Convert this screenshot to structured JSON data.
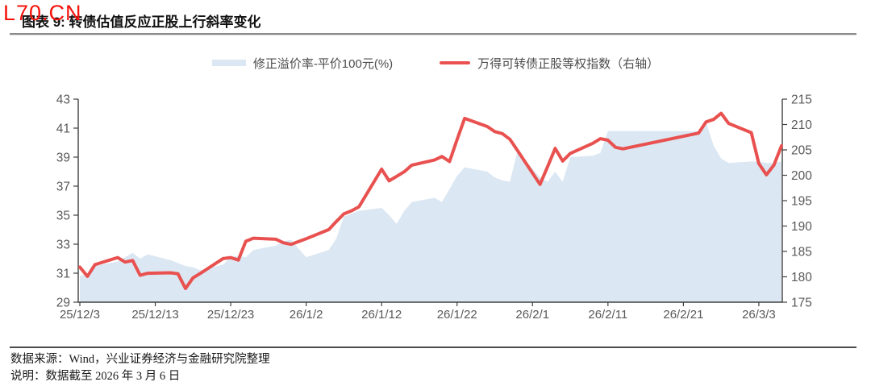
{
  "watermark": "L70.CN",
  "header": {
    "title": "图表 9: 转债估值反应正股上行斜率变化"
  },
  "legend": [
    {
      "label": "修正溢价率-平价100元(%)",
      "color": "#dbe7f3",
      "type": "area"
    },
    {
      "label": "万得可转债正股等权指数（右轴）",
      "color": "#e8514f",
      "type": "line"
    }
  ],
  "footer": {
    "source": "数据来源：Wind，兴业证券经济与金融研究院整理",
    "note": "说明：数据截至 2026 年 3 月 6 日"
  },
  "colors": {
    "area_fill": "#dbe7f3",
    "line_red": "#e8514f",
    "axis_line": "#404040",
    "axis_text": "#595959",
    "watermark_red": "#f5120b"
  },
  "chart_data": {
    "type": "line",
    "title": "转债估值反应正股上行斜率变化",
    "grid": false,
    "legend_position": "top-center",
    "x_axis": {
      "tick_labels": [
        "25/12/3",
        "25/12/13",
        "25/12/23",
        "26/1/2",
        "26/1/12",
        "26/1/22",
        "26/2/1",
        "26/2/11",
        "26/2/21",
        "26/3/3"
      ],
      "tick_days": [
        0,
        10,
        20,
        30,
        40,
        50,
        60,
        70,
        80,
        90
      ],
      "total_days": 93
    },
    "y_left": {
      "label": "修正溢价率-平价100元(%)",
      "ticks": [
        29,
        31,
        33,
        35,
        37,
        39,
        41,
        43
      ],
      "ylim": [
        29,
        43
      ]
    },
    "y_right": {
      "label": "万得可转债正股等权指数（右轴）",
      "ticks": [
        175,
        180,
        185,
        190,
        195,
        200,
        205,
        210,
        215
      ],
      "ylim": [
        175,
        215
      ]
    },
    "dates": [
      "25/12/3",
      "25/12/4",
      "25/12/5",
      "25/12/8",
      "25/12/9",
      "25/12/10",
      "25/12/11",
      "25/12/12",
      "25/12/15",
      "25/12/16",
      "25/12/17",
      "25/12/18",
      "25/12/19",
      "25/12/22",
      "25/12/23",
      "25/12/24",
      "25/12/25",
      "25/12/26",
      "25/12/29",
      "25/12/30",
      "25/12/31",
      "26/1/2",
      "26/1/5",
      "26/1/6",
      "26/1/7",
      "26/1/8",
      "26/1/9",
      "26/1/12",
      "26/1/13",
      "26/1/14",
      "26/1/15",
      "26/1/16",
      "26/1/19",
      "26/1/20",
      "26/1/21",
      "26/1/22",
      "26/1/23",
      "26/1/26",
      "26/1/27",
      "26/1/28",
      "26/1/29",
      "26/1/30",
      "26/2/2",
      "26/2/3",
      "26/2/4",
      "26/2/5",
      "26/2/6",
      "26/2/9",
      "26/2/10",
      "26/2/11",
      "26/2/12",
      "26/2/13",
      "26/2/23",
      "26/2/24",
      "26/2/25",
      "26/2/26",
      "26/2/27",
      "26/3/2",
      "26/3/3",
      "26/3/4",
      "26/3/5",
      "26/3/6"
    ],
    "days": [
      0,
      1,
      2,
      5,
      6,
      7,
      8,
      9,
      12,
      13,
      14,
      15,
      16,
      19,
      20,
      21,
      22,
      23,
      26,
      27,
      28,
      30,
      33,
      34,
      35,
      36,
      37,
      40,
      41,
      42,
      43,
      44,
      47,
      48,
      49,
      50,
      51,
      54,
      55,
      56,
      57,
      58,
      61,
      62,
      63,
      64,
      65,
      68,
      69,
      70,
      71,
      72,
      82,
      83,
      84,
      85,
      86,
      89,
      90,
      91,
      92,
      93
    ],
    "series": [
      {
        "name": "修正溢价率-平价100元(%)",
        "axis": "left",
        "style": "area",
        "color": "#dbe7f3",
        "values": [
          30.8,
          31.0,
          31.5,
          31.8,
          32.1,
          32.4,
          32.0,
          32.3,
          31.9,
          31.7,
          31.5,
          31.4,
          31.2,
          31.6,
          32.1,
          32.2,
          32.1,
          32.6,
          32.9,
          33.2,
          33.3,
          32.1,
          32.6,
          33.4,
          34.9,
          35.1,
          35.3,
          35.5,
          35.0,
          34.4,
          35.3,
          35.9,
          36.2,
          35.9,
          36.8,
          37.7,
          38.3,
          38.0,
          37.6,
          37.4,
          37.3,
          39.4,
          37.6,
          37.3,
          38.0,
          37.3,
          39.0,
          39.1,
          39.3,
          40.8,
          40.8,
          40.8,
          40.8,
          41.4,
          39.8,
          38.9,
          38.6,
          38.7,
          38.7,
          38.6,
          38.6,
          38.7
        ]
      },
      {
        "name": "万得可转债正股等权指数（右轴）",
        "axis": "right",
        "style": "line",
        "color": "#e8514f",
        "values": [
          181.9,
          180.1,
          182.4,
          183.8,
          182.9,
          183.2,
          180.3,
          180.7,
          180.8,
          180.6,
          177.7,
          179.8,
          180.7,
          183.6,
          183.8,
          183.3,
          187.0,
          187.6,
          187.4,
          186.7,
          186.4,
          187.5,
          189.3,
          190.9,
          192.4,
          193.0,
          193.8,
          201.2,
          198.9,
          199.8,
          200.7,
          202.0,
          203.0,
          203.7,
          202.7,
          207.0,
          211.2,
          209.6,
          208.6,
          208.2,
          207.1,
          204.9,
          198.2,
          201.7,
          205.3,
          202.8,
          204.3,
          206.3,
          207.2,
          206.9,
          205.5,
          205.2,
          208.3,
          210.5,
          211.0,
          212.2,
          210.2,
          208.4,
          202.3,
          200.1,
          202.0,
          205.8
        ]
      }
    ]
  }
}
